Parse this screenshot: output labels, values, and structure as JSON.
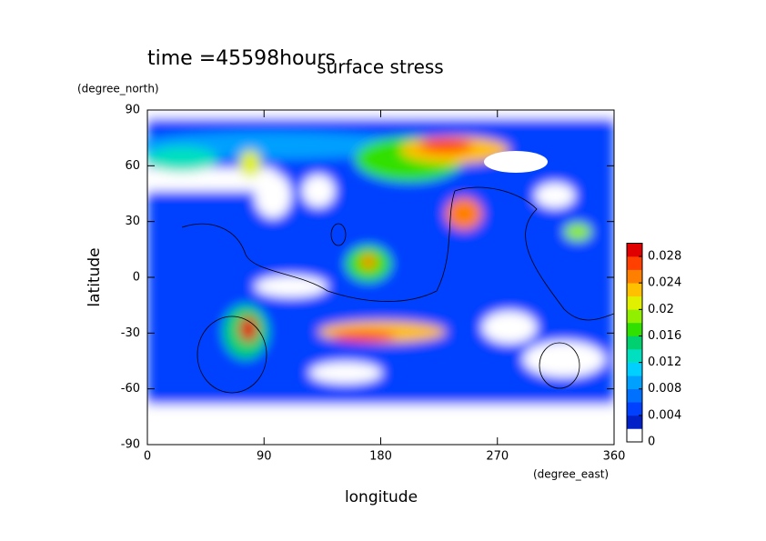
{
  "chart_data": {
    "type": "contour",
    "title": "surface stress",
    "subtitle": "time =45598hours",
    "x_label": "longitude",
    "x_unit": "(degree_east)",
    "y_label": "latitude",
    "y_unit": "(degree_north)",
    "xlim": [
      0,
      360
    ],
    "xticks": [
      0,
      90,
      180,
      270,
      360
    ],
    "ylim": [
      -90,
      90
    ],
    "yticks": [
      -90,
      -60,
      -30,
      0,
      30,
      60,
      90
    ],
    "zlim": [
      0,
      0.03
    ],
    "zticks": [
      0,
      0.004,
      0.008,
      0.012,
      0.016,
      0.02,
      0.024,
      0.028
    ],
    "colormap": [
      "#ffffff",
      "#0020c8",
      "#0040ff",
      "#0070ff",
      "#00a0ff",
      "#00d0ff",
      "#00e0c0",
      "#00d070",
      "#30e000",
      "#90f000",
      "#e0f000",
      "#ffc000",
      "#ff8000",
      "#ff4000",
      "#e00000"
    ]
  }
}
